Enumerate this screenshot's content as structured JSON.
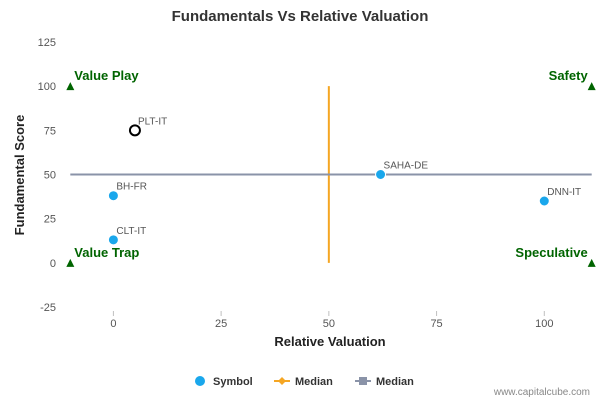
{
  "chart_data": {
    "type": "scatter",
    "title": "Fundamentals Vs Relative Valuation",
    "xlabel": "Relative Valuation",
    "ylabel": "Fundamental Score",
    "xlim": [
      -11,
      112
    ],
    "ylim": [
      -25,
      125
    ],
    "xticks": [
      0,
      25,
      50,
      75,
      100
    ],
    "yticks": [
      -25,
      0,
      25,
      50,
      75,
      100,
      125
    ],
    "series": [
      {
        "name": "Symbol",
        "color": "#1aa7ec",
        "points": [
          {
            "label": "PLT-IT",
            "x": 5,
            "y": 75,
            "hollow": true
          },
          {
            "label": "SAHA-DE",
            "x": 62,
            "y": 50
          },
          {
            "label": "BH-FR",
            "x": 0,
            "y": 38
          },
          {
            "label": "DNN-IT",
            "x": 100,
            "y": 35
          },
          {
            "label": "CLT-IT",
            "x": 0,
            "y": 13
          }
        ]
      },
      {
        "name": "Median",
        "color": "#f5a623",
        "orientation": "vertical",
        "x": 50,
        "y_range": [
          0,
          100
        ]
      },
      {
        "name": "Median",
        "color": "#8a93a8",
        "orientation": "horizontal",
        "y": 50,
        "x_range": [
          -10,
          111
        ]
      }
    ],
    "quadrants": [
      {
        "label": "Value Play",
        "x": -10,
        "y": 100,
        "anchor": "start"
      },
      {
        "label": "Safety",
        "x": 111,
        "y": 100,
        "anchor": "end"
      },
      {
        "label": "Value Trap",
        "x": -10,
        "y": 0,
        "anchor": "start"
      },
      {
        "label": "Speculative",
        "x": 111,
        "y": 0,
        "anchor": "end"
      }
    ],
    "quadrant_color": "#006400",
    "legend": {
      "placement": "bottom"
    },
    "grid": false
  },
  "credit": "www.capitalcube.com"
}
